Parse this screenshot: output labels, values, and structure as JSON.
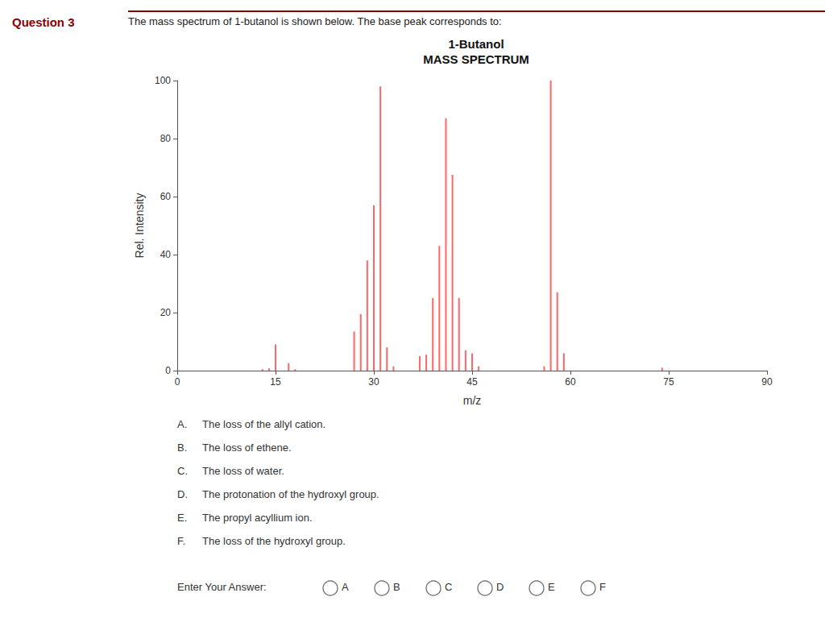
{
  "chart_data": {
    "type": "bar",
    "title": "1-Butanol",
    "subtitle": "MASS SPECTRUM",
    "xlabel": "m/z",
    "ylabel": "Rel. Intensity",
    "x": [
      13,
      14,
      15,
      17,
      18,
      27,
      28,
      29,
      30,
      31,
      32,
      33,
      37,
      38,
      39,
      40,
      41,
      42,
      43,
      44,
      45,
      46,
      56,
      57,
      58,
      59,
      74
    ],
    "values": [
      0.5,
      0.8,
      9.0,
      2.5,
      0.5,
      13.5,
      19.5,
      38.0,
      57.0,
      98.0,
      8.0,
      1.5,
      5.0,
      5.5,
      25.0,
      43.0,
      87.0,
      67.5,
      25.0,
      7.0,
      6.0,
      1.5,
      1.5,
      100.0,
      27.0,
      6.0,
      1.0
    ],
    "color": "#FF6666",
    "xlim": [
      0,
      90
    ],
    "ylim": [
      0,
      100
    ],
    "xticks": [
      0,
      15,
      30,
      45,
      60,
      75,
      90
    ],
    "yticks": [
      0,
      20,
      40,
      60,
      80,
      100
    ],
    "grid": false,
    "annotations": {
      "question": "Question 3",
      "header": "The mass spectrum of 1-butanol is shown below. The base peak corresponds to:",
      "choices": [
        [
          "A.",
          "The loss of the allyl cation."
        ],
        [
          "B.",
          "The loss of ethene."
        ],
        [
          "C.",
          "The loss of water."
        ],
        [
          "D.",
          "The protonation of the hydroxyl group."
        ],
        [
          "E.",
          "The propyl acyllium ion."
        ],
        [
          "F.",
          "The loss of the hydroxyl group."
        ]
      ],
      "prompt": "Enter Your Answer:",
      "options": [
        "A",
        "B",
        "C",
        "D",
        "E",
        "F"
      ]
    }
  }
}
